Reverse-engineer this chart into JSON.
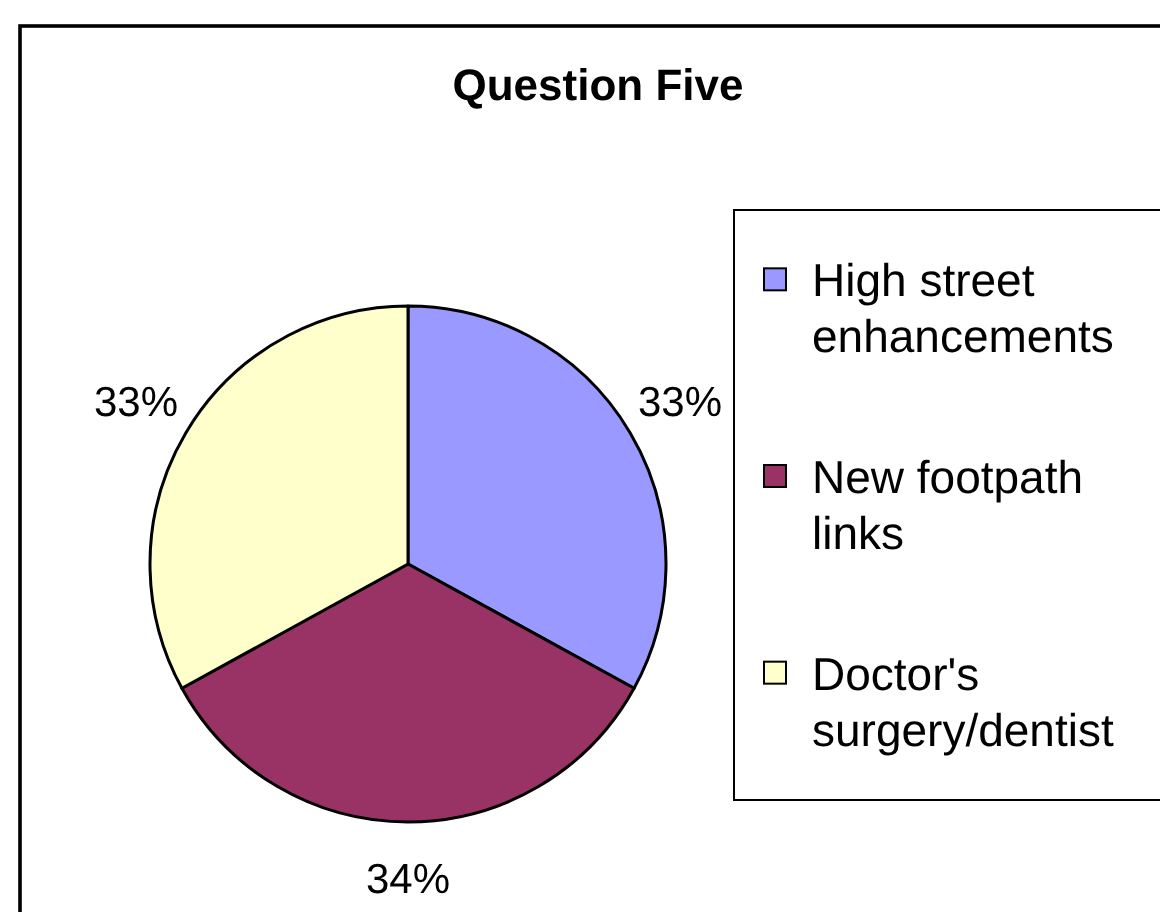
{
  "chart_data": {
    "type": "pie",
    "title": "Question Five",
    "categories": [
      "High street enhancements",
      "New footpath links",
      "Doctor's surgery/dentist"
    ],
    "values": [
      33,
      34,
      33
    ],
    "colors": [
      "#9999ff",
      "#993366",
      "#ffffcc"
    ],
    "value_labels": [
      "33%",
      "34%",
      "33%"
    ],
    "legend": "right"
  }
}
